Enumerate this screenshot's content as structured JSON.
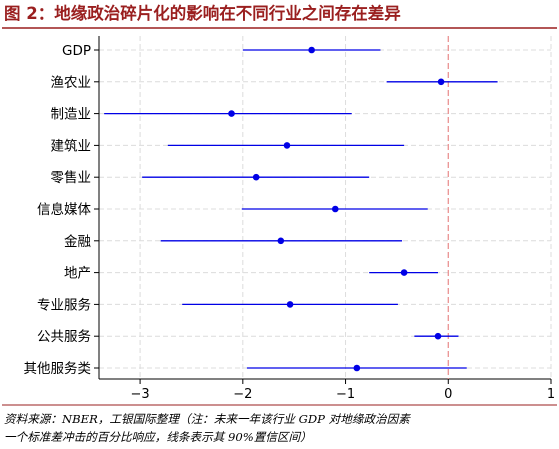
{
  "figure": {
    "title": "图 2：地缘政治碎片化的影响在不同行业之间存在差异",
    "source_line1": "资料来源：NBER，工银国际整理（注：未来一年该行业 GDP 对地缘政治因素",
    "source_line2": "一个标准差冲击的百分比响应，线条表示其 90%置信区间）"
  },
  "colors": {
    "title": "#9a1f1f",
    "series": "#0000e6",
    "reference_line": "#e88a8a"
  },
  "chart_data": {
    "type": "scatter",
    "orientation": "horizontal",
    "title": "",
    "xlabel": "",
    "ylabel": "",
    "categories": [
      "GDP",
      "渔农业",
      "制造业",
      "建筑业",
      "零售业",
      "信息媒体",
      "金融",
      "地产",
      "专业服务",
      "公共服务",
      "其他服务类"
    ],
    "estimate": [
      -1.33,
      -0.07,
      -2.11,
      -1.57,
      -1.87,
      -1.1,
      -1.63,
      -0.43,
      -1.54,
      -0.1,
      -0.89
    ],
    "ci_low": [
      -2.0,
      -0.6,
      -3.35,
      -2.73,
      -2.98,
      -2.01,
      -2.8,
      -0.77,
      -2.59,
      -0.33,
      -1.96
    ],
    "ci_high": [
      -0.66,
      0.48,
      -0.94,
      -0.43,
      -0.77,
      -0.2,
      -0.45,
      -0.1,
      -0.49,
      0.1,
      0.18
    ],
    "xlim": [
      -3.4,
      1.0
    ],
    "xticks": [
      -3,
      -2,
      -1,
      0,
      1
    ],
    "xtick_labels": [
      "−3",
      "−2",
      "−1",
      "0",
      "1"
    ],
    "reference_x": 0,
    "grid": true
  }
}
